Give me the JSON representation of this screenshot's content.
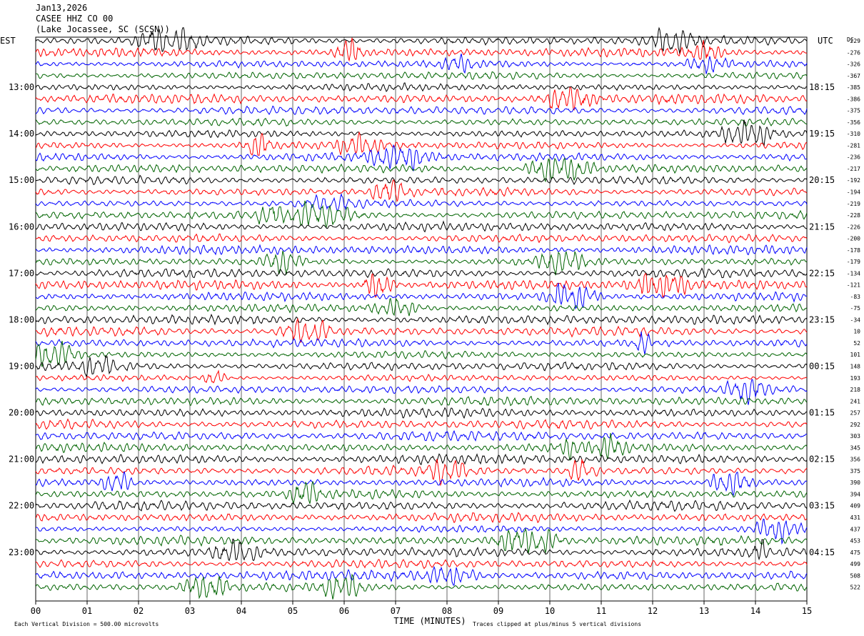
{
  "header": {
    "date": "Jan13,2026",
    "station": "CASEE HHZ CO 00",
    "location": "(Lake Jocassee, SC (SCSN))"
  },
  "chart_data": {
    "type": "line",
    "title": "",
    "left_timezone": "EST",
    "right_timezone": "UTC",
    "dc_label": "DC",
    "xlabel": "TIME (MINUTES)",
    "x_tick_labels": [
      "00",
      "01",
      "02",
      "03",
      "04",
      "05",
      "06",
      "07",
      "08",
      "09",
      "10",
      "11",
      "12",
      "13",
      "14",
      "15"
    ],
    "xlim": [
      0,
      15
    ],
    "traces_per_hour": 4,
    "minutes_per_trace": 15,
    "left_hour_labels": [
      "13:00",
      "14:00",
      "15:00",
      "16:00",
      "17:00",
      "18:00",
      "19:00",
      "20:00",
      "21:00",
      "22:00",
      "23:00"
    ],
    "right_hour_labels": [
      "18:15",
      "19:15",
      "20:15",
      "21:15",
      "22:15",
      "23:15",
      "00:15",
      "01:15",
      "02:15",
      "03:15",
      "04:15"
    ],
    "dc_offsets": [
      "-229",
      "-276",
      "-326",
      "-367",
      "-385",
      "-386",
      "-375",
      "-356",
      "-310",
      "-281",
      "-236",
      "-217",
      "-192",
      "-194",
      "-219",
      "-228",
      "-226",
      "-200",
      "-178",
      "-179",
      "-134",
      "-121",
      "-83",
      "-75",
      "-34",
      "10",
      "52",
      "101",
      "148",
      "193",
      "218",
      "241",
      "257",
      "292",
      "303",
      "345",
      "356",
      "375",
      "390",
      "394",
      "409",
      "431",
      "437",
      "453",
      "475",
      "499",
      "508",
      "522"
    ],
    "trace_colors": [
      "#000000",
      "#ff0000",
      "#0000ff",
      "#006400"
    ],
    "footer_left": "Each Vertical Division =  500.00 microvolts",
    "footer_right": "Traces clipped at plus/minus 5 vertical divisions"
  }
}
